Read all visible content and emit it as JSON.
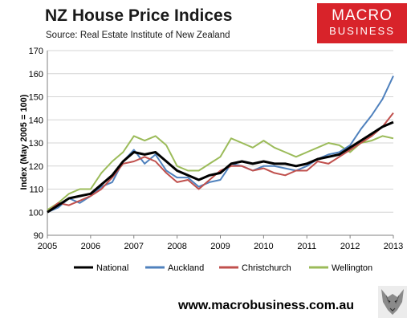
{
  "title": "NZ House Price Indices",
  "subtitle": "Source: Real Estate Institute of New Zealand",
  "logo": {
    "line1": "MACRO",
    "line2": "BUSINESS",
    "color": "#d8232a"
  },
  "footer_url": "www.macrobusiness.com.au",
  "chart_data": {
    "type": "line",
    "title": "NZ House Price Indices",
    "ylabel": "Index (May 2005 = 100)",
    "xlabel": "",
    "ylim": [
      90,
      170
    ],
    "yticks": [
      90,
      100,
      110,
      120,
      130,
      140,
      150,
      160,
      170
    ],
    "xlim": [
      2005,
      2013
    ],
    "xticks": [
      "2005",
      "2006",
      "2007",
      "2008",
      "2009",
      "2010",
      "2011",
      "2012",
      "2013"
    ],
    "grid": "horizontal",
    "legend_position": "bottom",
    "series": [
      {
        "name": "National",
        "color": "#000000",
        "width": 3,
        "x": [
          2005.0,
          2005.25,
          2005.5,
          2005.75,
          2006.0,
          2006.25,
          2006.5,
          2006.75,
          2007.0,
          2007.25,
          2007.5,
          2007.75,
          2008.0,
          2008.25,
          2008.5,
          2008.75,
          2009.0,
          2009.25,
          2009.5,
          2009.75,
          2010.0,
          2010.25,
          2010.5,
          2010.75,
          2011.0,
          2011.25,
          2011.5,
          2011.75,
          2012.0,
          2012.25,
          2012.5,
          2012.75,
          2013.0
        ],
        "y": [
          100,
          103,
          106,
          107,
          108,
          112,
          116,
          122,
          126,
          125,
          126,
          122,
          118,
          116,
          114,
          116,
          117,
          121,
          122,
          121,
          122,
          121,
          121,
          120,
          121,
          123,
          124,
          125,
          128,
          131,
          134,
          137,
          139
        ]
      },
      {
        "name": "Auckland",
        "color": "#4f81bd",
        "width": 2,
        "x": [
          2005.0,
          2005.25,
          2005.5,
          2005.75,
          2006.0,
          2006.25,
          2006.5,
          2006.75,
          2007.0,
          2007.25,
          2007.5,
          2007.75,
          2008.0,
          2008.25,
          2008.5,
          2008.75,
          2009.0,
          2009.25,
          2009.5,
          2009.75,
          2010.0,
          2010.25,
          2010.5,
          2010.75,
          2011.0,
          2011.25,
          2011.5,
          2011.75,
          2012.0,
          2012.25,
          2012.5,
          2012.75,
          2013.0
        ],
        "y": [
          100,
          102,
          106,
          104,
          107,
          111,
          113,
          122,
          127,
          121,
          125,
          118,
          115,
          115,
          111,
          113,
          114,
          121,
          120,
          118,
          120,
          120,
          119,
          118,
          120,
          123,
          125,
          126,
          129,
          136,
          142,
          149,
          159
        ]
      },
      {
        "name": "Christchurch",
        "color": "#c0504d",
        "width": 2,
        "x": [
          2005.0,
          2005.25,
          2005.5,
          2005.75,
          2006.0,
          2006.25,
          2006.5,
          2006.75,
          2007.0,
          2007.25,
          2007.5,
          2007.75,
          2008.0,
          2008.25,
          2008.5,
          2008.75,
          2009.0,
          2009.25,
          2009.5,
          2009.75,
          2010.0,
          2010.25,
          2010.5,
          2010.75,
          2011.0,
          2011.25,
          2011.5,
          2011.75,
          2012.0,
          2012.25,
          2012.5,
          2012.75,
          2013.0
        ],
        "y": [
          100,
          104,
          103,
          105,
          107,
          110,
          115,
          121,
          122,
          124,
          122,
          117,
          113,
          114,
          110,
          114,
          118,
          120,
          120,
          118,
          119,
          117,
          116,
          118,
          118,
          122,
          121,
          124,
          127,
          130,
          133,
          137,
          143
        ]
      },
      {
        "name": "Wellington",
        "color": "#9bbb59",
        "width": 2,
        "x": [
          2005.0,
          2005.25,
          2005.5,
          2005.75,
          2006.0,
          2006.25,
          2006.5,
          2006.75,
          2007.0,
          2007.25,
          2007.5,
          2007.75,
          2008.0,
          2008.25,
          2008.5,
          2008.75,
          2009.0,
          2009.25,
          2009.5,
          2009.75,
          2010.0,
          2010.25,
          2010.5,
          2010.75,
          2011.0,
          2011.25,
          2011.5,
          2011.75,
          2012.0,
          2012.25,
          2012.5,
          2012.75,
          2013.0
        ],
        "y": [
          101,
          104,
          108,
          110,
          110,
          117,
          122,
          126,
          133,
          131,
          133,
          129,
          120,
          118,
          118,
          121,
          124,
          132,
          130,
          128,
          131,
          128,
          126,
          124,
          126,
          128,
          130,
          129,
          126,
          130,
          131,
          133,
          132
        ]
      }
    ]
  }
}
